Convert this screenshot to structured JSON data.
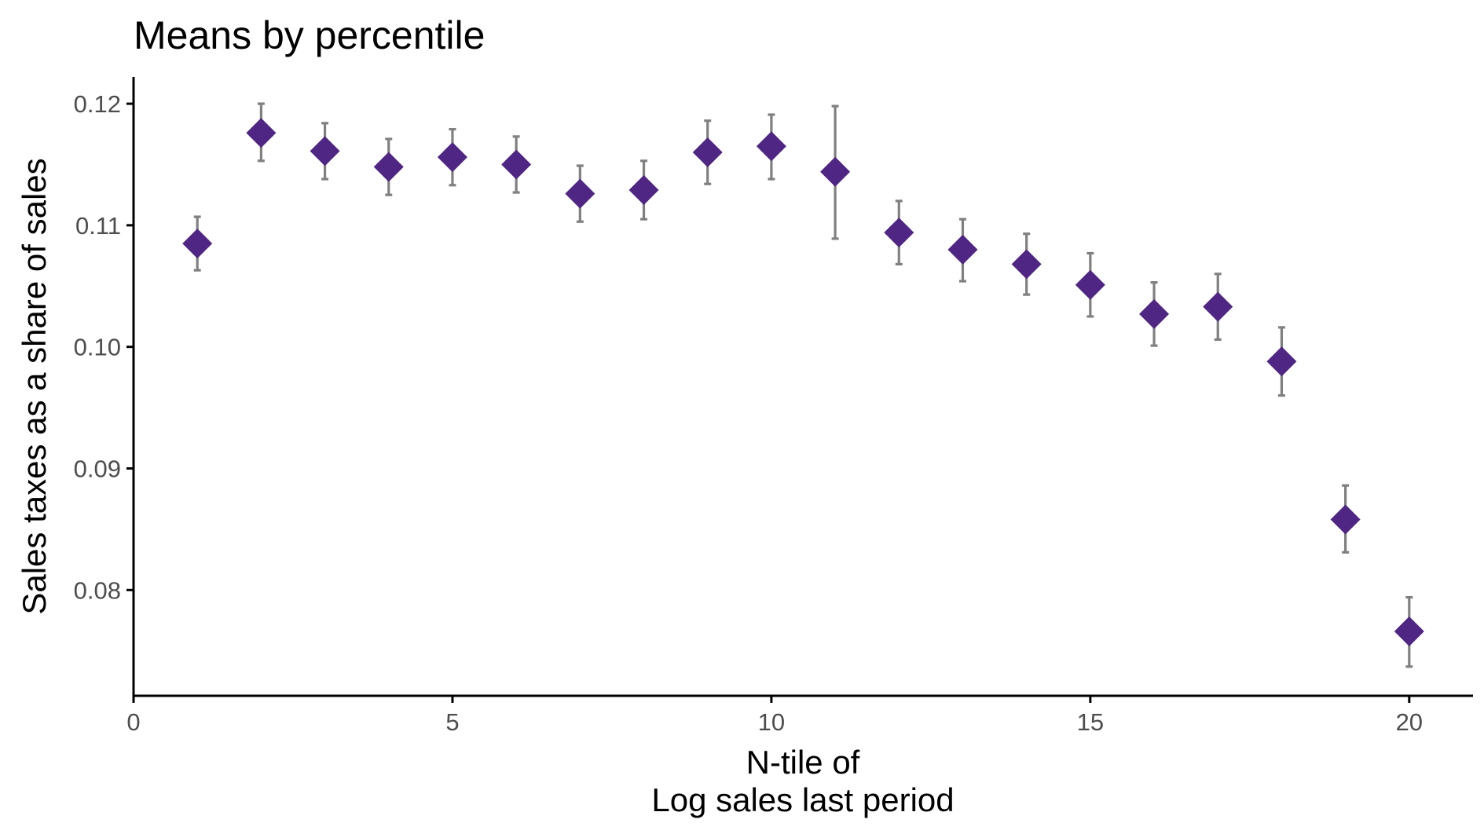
{
  "chart_data": {
    "type": "scatter",
    "title": "Means by percentile",
    "xlabel_lines": [
      "N-tile of",
      "Log sales last period"
    ],
    "ylabel": "Sales taxes as a share of sales",
    "xlim": [
      0,
      21
    ],
    "ylim": [
      0.0713,
      0.1222
    ],
    "xticks": [
      0,
      5,
      10,
      15,
      20
    ],
    "xtick_labels": [
      "0",
      "5",
      "10",
      "15",
      "20"
    ],
    "yticks": [
      0.08,
      0.09,
      0.1,
      0.11,
      0.12
    ],
    "ytick_labels": [
      "0.08",
      "0.09",
      "0.10",
      "0.11",
      "0.12"
    ],
    "grid": false,
    "legend": "none",
    "marker": "diamond",
    "colors": {
      "point": "#4f2683",
      "errorbar": "#808080",
      "axis": "#000000"
    },
    "points": [
      {
        "x": 1,
        "y": 0.1085,
        "lo": 0.1063,
        "hi": 0.1107
      },
      {
        "x": 2,
        "y": 0.1176,
        "lo": 0.1153,
        "hi": 0.12
      },
      {
        "x": 3,
        "y": 0.1161,
        "lo": 0.1138,
        "hi": 0.1184
      },
      {
        "x": 4,
        "y": 0.1148,
        "lo": 0.1125,
        "hi": 0.1171
      },
      {
        "x": 5,
        "y": 0.1156,
        "lo": 0.1133,
        "hi": 0.1179
      },
      {
        "x": 6,
        "y": 0.115,
        "lo": 0.1127,
        "hi": 0.1173
      },
      {
        "x": 7,
        "y": 0.1126,
        "lo": 0.1103,
        "hi": 0.1149
      },
      {
        "x": 8,
        "y": 0.1129,
        "lo": 0.1105,
        "hi": 0.1153
      },
      {
        "x": 9,
        "y": 0.116,
        "lo": 0.1134,
        "hi": 0.1186
      },
      {
        "x": 10,
        "y": 0.1165,
        "lo": 0.1138,
        "hi": 0.1191
      },
      {
        "x": 11,
        "y": 0.1144,
        "lo": 0.1089,
        "hi": 0.1198
      },
      {
        "x": 12,
        "y": 0.1094,
        "lo": 0.1068,
        "hi": 0.112
      },
      {
        "x": 13,
        "y": 0.108,
        "lo": 0.1054,
        "hi": 0.1105
      },
      {
        "x": 14,
        "y": 0.1068,
        "lo": 0.1043,
        "hi": 0.1093
      },
      {
        "x": 15,
        "y": 0.1051,
        "lo": 0.1025,
        "hi": 0.1077
      },
      {
        "x": 16,
        "y": 0.1027,
        "lo": 0.1001,
        "hi": 0.1053
      },
      {
        "x": 17,
        "y": 0.1033,
        "lo": 0.1006,
        "hi": 0.106
      },
      {
        "x": 18,
        "y": 0.0988,
        "lo": 0.096,
        "hi": 0.1016
      },
      {
        "x": 19,
        "y": 0.0858,
        "lo": 0.0831,
        "hi": 0.0886
      },
      {
        "x": 20,
        "y": 0.0766,
        "lo": 0.0737,
        "hi": 0.0794
      }
    ]
  }
}
